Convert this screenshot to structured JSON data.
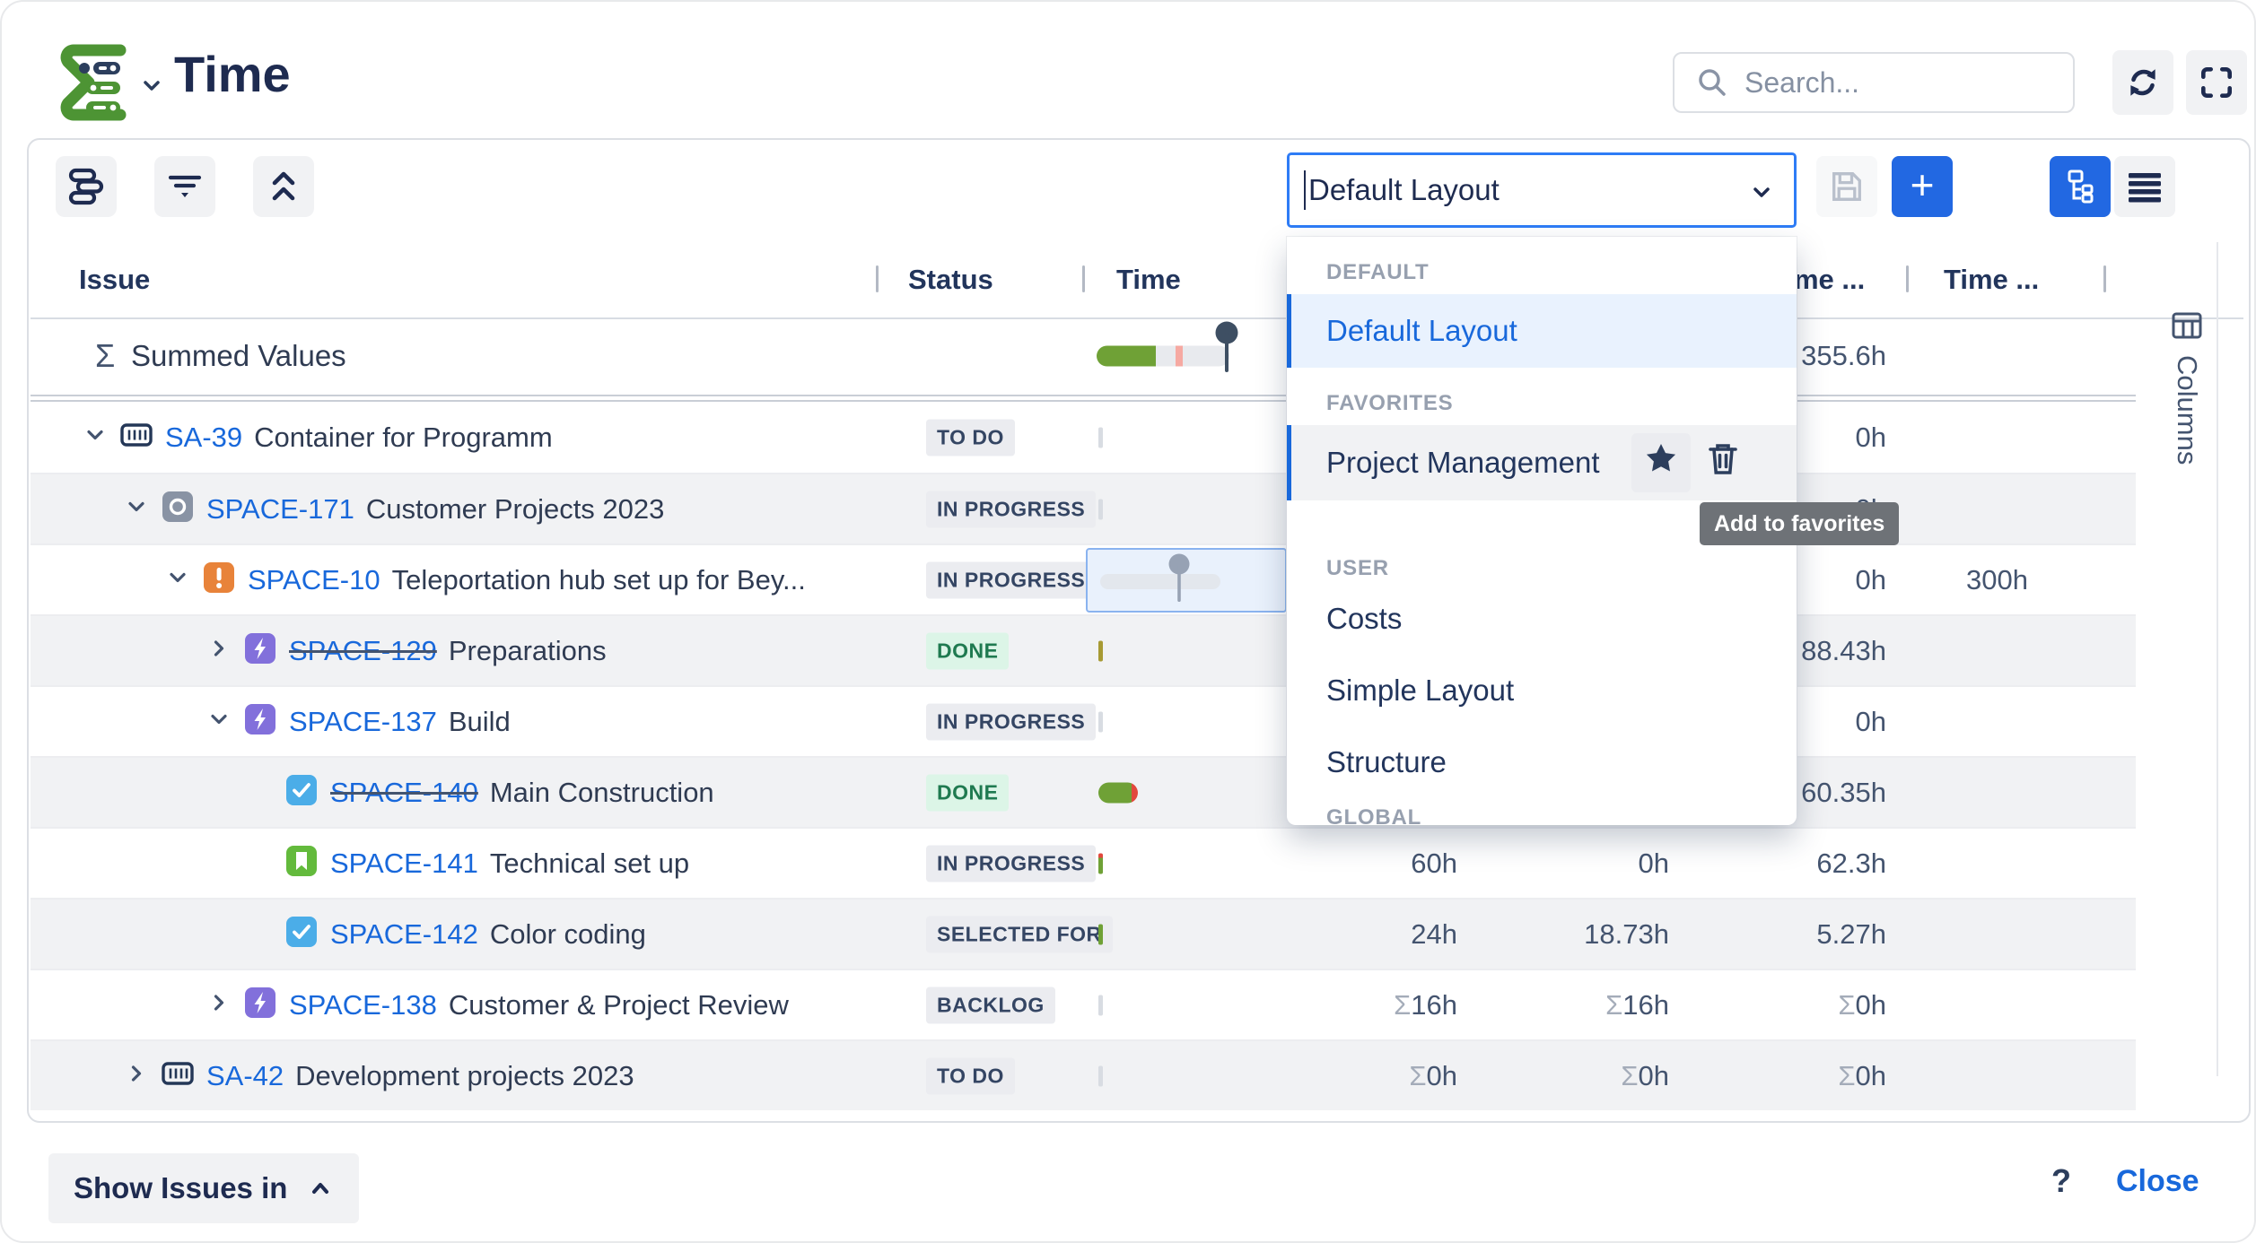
{
  "header": {
    "title": "Time",
    "search_placeholder": "Search..."
  },
  "toolbar": {
    "layout_value": "Default Layout"
  },
  "layout_dropdown": {
    "tooltip": "Add to favorites",
    "sections": [
      {
        "label": "DEFAULT",
        "items": [
          {
            "label": "Default Layout",
            "state": "selected"
          }
        ]
      },
      {
        "label": "FAVORITES",
        "items": [
          {
            "label": "Project Management",
            "state": "hover",
            "actions": [
              "star",
              "trash"
            ]
          }
        ]
      },
      {
        "label": "USER",
        "items": [
          {
            "label": "Costs"
          },
          {
            "label": "Simple Layout"
          },
          {
            "label": "Structure"
          }
        ]
      },
      {
        "label": "GLOBAL",
        "items": []
      }
    ]
  },
  "table": {
    "columns": [
      {
        "label": "Issue"
      },
      {
        "label": "Status"
      },
      {
        "label": "Time"
      },
      {
        "label": "Time ..."
      },
      {
        "label": "Time ..."
      }
    ],
    "summed_row": {
      "sigma": "Σ",
      "label": "Summed Values",
      "values": {
        "c3": "355.6h"
      }
    },
    "rows": [
      {
        "level": 0,
        "expander": "down",
        "icon": "container-icon",
        "key": "SA-39",
        "strike": false,
        "summary": "Container for Programm",
        "status": "TO DO",
        "status_kind": "gray",
        "indicator": "tick-gray",
        "values": {
          "c3": "0h"
        }
      },
      {
        "level": 1,
        "expander": "down",
        "icon": "program-icon",
        "key": "SPACE-171",
        "strike": false,
        "summary": "Customer Projects 2023",
        "status": "IN PROGRESS",
        "status_kind": "gray",
        "indicator": "tick-gray",
        "values": {
          "c3": "0h"
        }
      },
      {
        "level": 2,
        "expander": "down",
        "icon": "alert-icon",
        "key": "SPACE-10",
        "strike": false,
        "summary": "Teleportation hub set up for Bey...",
        "status": "IN PROGRESS",
        "status_kind": "gray",
        "indicator": "slider",
        "values": {
          "c3": "0h",
          "c4": "300h"
        }
      },
      {
        "level": 3,
        "expander": "right",
        "icon": "bolt-icon",
        "key": "SPACE-129",
        "strike": true,
        "summary": "Preparations",
        "status": "DONE",
        "status_kind": "green",
        "indicator": "tick-olive",
        "values": {
          "c3": "88.43h"
        }
      },
      {
        "level": 3,
        "expander": "down",
        "icon": "bolt-icon",
        "key": "SPACE-137",
        "strike": false,
        "summary": "Build",
        "status": "IN PROGRESS",
        "status_kind": "gray",
        "indicator": "tick-gray",
        "values": {
          "c3": "0h"
        }
      },
      {
        "level": 4,
        "expander": null,
        "icon": "check-icon",
        "key": "SPACE-140",
        "strike": true,
        "summary": "Main Construction",
        "status": "DONE",
        "status_kind": "green",
        "indicator": "pill-green-red",
        "values": {
          "c3": "60.35h"
        }
      },
      {
        "level": 4,
        "expander": null,
        "icon": "bookmark-icon",
        "key": "SPACE-141",
        "strike": false,
        "summary": "Technical set up",
        "status": "IN PROGRESS",
        "status_kind": "gray",
        "indicator": "tick-green-red",
        "values": {
          "c1": "60h",
          "c2": "0h",
          "c3": "62.3h"
        }
      },
      {
        "level": 4,
        "expander": null,
        "icon": "check-icon",
        "key": "SPACE-142",
        "strike": false,
        "summary": "Color coding",
        "status": "SELECTED FOR",
        "status_kind": "gray",
        "indicator": "tick-green",
        "values": {
          "c1": "24h",
          "c2": "18.73h",
          "c3": "5.27h"
        }
      },
      {
        "level": 3,
        "expander": "right",
        "icon": "bolt-icon",
        "key": "SPACE-138",
        "strike": false,
        "summary": "Customer & Project Review",
        "status": "BACKLOG",
        "status_kind": "gray",
        "indicator": "tick-gray",
        "values": {
          "c1": "Σ16h",
          "c2": "Σ16h",
          "c3": "Σ0h"
        }
      },
      {
        "level": 1,
        "expander": "right",
        "icon": "container-icon",
        "key": "SA-42",
        "strike": false,
        "summary": "Development projects 2023",
        "status": "TO DO",
        "status_kind": "gray",
        "indicator": "tick-gray",
        "values": {
          "c1": "Σ0h",
          "c2": "Σ0h",
          "c3": "Σ0h"
        }
      }
    ]
  },
  "sidebar": {
    "label": "Columns"
  },
  "footer": {
    "show_issues_label": "Show Issues in",
    "help_label": "?",
    "close_label": "Close"
  },
  "colors": {
    "accent_blue": "#1868DB",
    "navy_text": "#1E2B50",
    "badge_gray_bg": "#EBECF0",
    "badge_green_bg": "#DCF5E7",
    "badge_green_text": "#1F7A50",
    "progress_green": "#6FA136",
    "progress_red": "#E2483D",
    "progress_pink": "#F6A9A2",
    "icon_purple": "#8270DB",
    "icon_blue": "#4BADE8",
    "icon_green": "#63BA3C",
    "icon_orange": "#E8833A",
    "logo_green": "#4D9434"
  }
}
